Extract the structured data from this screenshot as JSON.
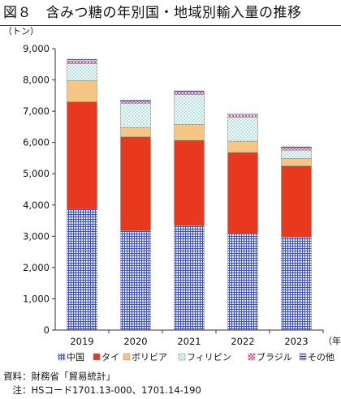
{
  "title": "図８　含みつ糖の年別国・地域別輸入量の推移",
  "notes": {
    "source": "資料：財務省「貿易統計」",
    "note": "　注：HSコード1701.13-000、1701.14-190"
  },
  "chart_data": {
    "type": "bar",
    "stacked": true,
    "title": "図８　含みつ糖の年別国・地域別輸入量の推移",
    "ylabel": "（トン）",
    "xlabel": "（年）",
    "categories": [
      "2019",
      "2020",
      "2021",
      "2022",
      "2023"
    ],
    "ylim": [
      0,
      9000
    ],
    "yticks": [
      0,
      1000,
      2000,
      3000,
      4000,
      5000,
      6000,
      7000,
      8000,
      9000
    ],
    "ytick_labels": [
      "0",
      "1,000",
      "2,000",
      "3,000",
      "4,000",
      "5,000",
      "6,000",
      "7,000",
      "8,000",
      "9,000"
    ],
    "grid": false,
    "legend_position": "bottom",
    "series": [
      {
        "name": "中国",
        "color": "#3b4fd8",
        "pattern": "grid",
        "values": [
          3870,
          3180,
          3340,
          3080,
          2970
        ]
      },
      {
        "name": "タイ",
        "color": "#e8391e",
        "pattern": "solid",
        "values": [
          3430,
          3000,
          2730,
          2600,
          2280
        ]
      },
      {
        "name": "ボリビア",
        "color": "#f6c684",
        "pattern": "solid",
        "values": [
          680,
          290,
          510,
          360,
          240
        ]
      },
      {
        "name": "フィリピン",
        "color": "#5bc4b6",
        "pattern": "dots",
        "values": [
          540,
          780,
          950,
          770,
          260
        ]
      },
      {
        "name": "ブラジル",
        "color": "#cf4f95",
        "pattern": "checker",
        "values": [
          80,
          70,
          70,
          70,
          70
        ]
      },
      {
        "name": "その他",
        "color": "#1c2e8a",
        "pattern": "stripe",
        "values": [
          60,
          40,
          50,
          40,
          40
        ]
      }
    ]
  }
}
